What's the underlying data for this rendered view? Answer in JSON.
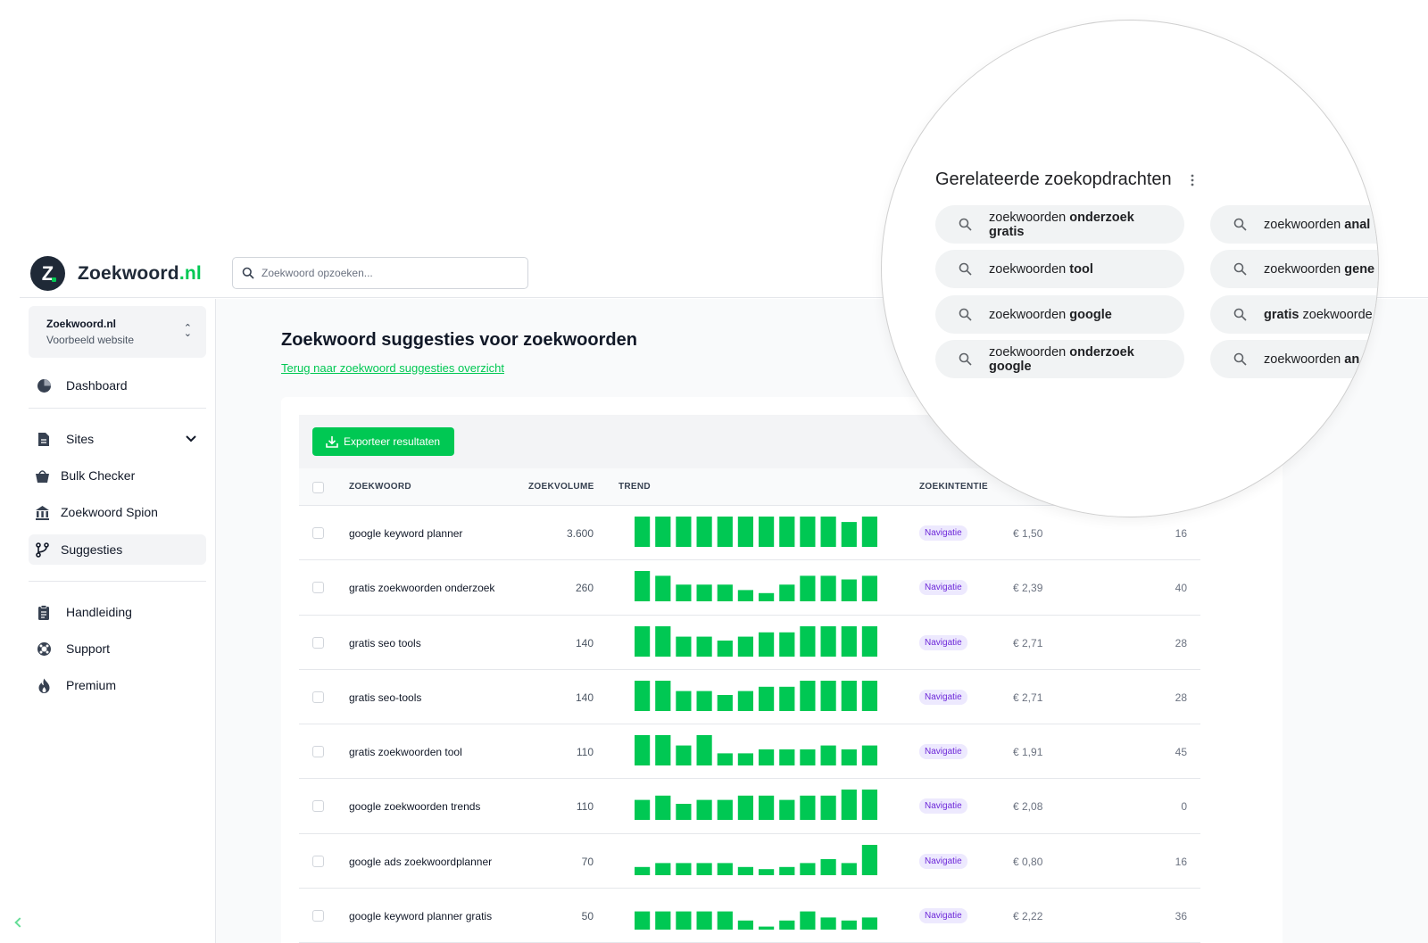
{
  "brand": {
    "name_main": "Zoekwoord",
    "name_tld": ".nl",
    "logo_letter": "Z"
  },
  "search": {
    "placeholder": "Zoekwoord opzoeken..."
  },
  "site_switcher": {
    "name": "Zoekwoord.nl",
    "subtitle": "Voorbeeld website"
  },
  "nav": {
    "dashboard": "Dashboard",
    "sites": "Sites",
    "bulk_checker": "Bulk Checker",
    "spion": "Zoekwoord Spion",
    "suggesties": "Suggesties",
    "handleiding": "Handleiding",
    "support": "Support",
    "premium": "Premium"
  },
  "page": {
    "title": "Zoekwoord suggesties voor zoekwoorden",
    "back_link": "Terug naar zoekwoord suggesties overzicht",
    "export_label": "Exporteer resultaten"
  },
  "table": {
    "headers": {
      "keyword": "ZOEKWOORD",
      "volume": "ZOEKVOLUME",
      "trend": "TREND",
      "intent": "ZOEKINTENTIE"
    },
    "rows": [
      {
        "keyword": "google keyword planner",
        "volume": "3.600",
        "intent": "Navigatie",
        "cpc": "€ 1,50",
        "difficulty": "16",
        "trend": [
          1,
          1,
          1,
          1,
          1,
          1,
          1,
          1,
          1,
          1,
          0.82,
          1
        ]
      },
      {
        "keyword": "gratis zoekwoorden onderzoek",
        "volume": "260",
        "intent": "Navigatie",
        "cpc": "€ 2,39",
        "difficulty": "40",
        "trend": [
          1,
          0.84,
          0.55,
          0.55,
          0.55,
          0.37,
          0.27,
          0.55,
          0.84,
          0.84,
          0.72,
          0.84
        ]
      },
      {
        "keyword": "gratis seo tools",
        "volume": "140",
        "intent": "Navigatie",
        "cpc": "€ 2,71",
        "difficulty": "28",
        "trend": [
          1,
          1,
          0.66,
          0.66,
          0.53,
          0.66,
          0.8,
          0.8,
          1,
          1,
          1,
          1
        ]
      },
      {
        "keyword": "gratis seo-tools",
        "volume": "140",
        "intent": "Navigatie",
        "cpc": "€ 2,71",
        "difficulty": "28",
        "trend": [
          1,
          1,
          0.66,
          0.66,
          0.53,
          0.66,
          0.8,
          0.8,
          1,
          1,
          1,
          1
        ]
      },
      {
        "keyword": "gratis zoekwoorden tool",
        "volume": "110",
        "intent": "Navigatie",
        "cpc": "€ 1,91",
        "difficulty": "45",
        "trend": [
          1,
          1,
          0.66,
          1,
          0.4,
          0.4,
          0.53,
          0.53,
          0.53,
          0.66,
          0.53,
          0.66
        ]
      },
      {
        "keyword": "google zoekwoorden trends",
        "volume": "110",
        "intent": "Navigatie",
        "cpc": "€ 2,08",
        "difficulty": "0",
        "trend": [
          0.66,
          0.8,
          0.53,
          0.66,
          0.66,
          0.8,
          0.8,
          0.66,
          0.8,
          0.8,
          1,
          1
        ]
      },
      {
        "keyword": "google ads zoekwoordplanner",
        "volume": "70",
        "intent": "Navigatie",
        "cpc": "€ 0,80",
        "difficulty": "16",
        "trend": [
          0.27,
          0.4,
          0.4,
          0.4,
          0.4,
          0.27,
          0.2,
          0.27,
          0.4,
          0.53,
          0.4,
          1
        ]
      },
      {
        "keyword": "google keyword planner gratis",
        "volume": "50",
        "intent": "Navigatie",
        "cpc": "€ 2,22",
        "difficulty": "36",
        "trend": [
          0.6,
          0.6,
          0.6,
          0.6,
          0.6,
          0.3,
          0.1,
          0.3,
          0.6,
          0.4,
          0.3,
          0.4
        ]
      }
    ]
  },
  "related": {
    "title": "Gerelateerde zoekopdrachten",
    "left": [
      {
        "normal": "zoekwoorden ",
        "bold": "onderzoek gratis"
      },
      {
        "normal": "zoekwoorden ",
        "bold": "tool"
      },
      {
        "normal": "zoekwoorden ",
        "bold": "google"
      },
      {
        "normal": "zoekwoorden ",
        "bold": "onderzoek google"
      }
    ],
    "right": [
      {
        "normal": "zoekwoorden ",
        "bold": "anal"
      },
      {
        "normal": "zoekwoorden ",
        "bold": "gene"
      },
      {
        "bold": "gratis",
        "normal": " zoekwoorde"
      },
      {
        "normal": "zoekwoorden ",
        "bold": "an"
      }
    ]
  },
  "colors": {
    "accent": "#00c853",
    "badge_bg": "#ede9fe",
    "badge_text": "#6d28d9"
  }
}
